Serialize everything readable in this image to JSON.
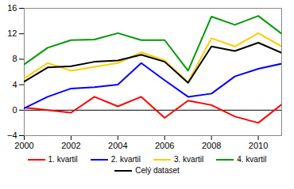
{
  "chart_data": {
    "type": "line",
    "x": [
      2000,
      2001,
      2002,
      2003,
      2004,
      2005,
      2006,
      2007,
      2008,
      2009,
      2010,
      2011
    ],
    "series": [
      {
        "name": "1. kvartil",
        "color": "#ff0000",
        "values": [
          0.4,
          0,
          -0.4,
          2.1,
          0.6,
          2.1,
          -1.2,
          1.5,
          0.8,
          -1,
          -2,
          0.9
        ]
      },
      {
        "name": "2. kvartil",
        "color": "#0000ff",
        "values": [
          0.3,
          2.1,
          3.4,
          3.6,
          4.0,
          7.4,
          4.7,
          2.1,
          2.6,
          5.3,
          6.5,
          7.3
        ]
      },
      {
        "name": "3. kvartil",
        "color": "#ffcc00",
        "values": [
          5.0,
          7.4,
          6.2,
          6.8,
          7.4,
          9.1,
          7.8,
          4.4,
          11.3,
          10.0,
          12.1,
          10.0
        ]
      },
      {
        "name": "4. kvartil",
        "color": "#009900",
        "values": [
          7.2,
          9.8,
          11.0,
          11.1,
          12.1,
          11.0,
          11.0,
          6.2,
          14.7,
          13.4,
          14.8,
          12.0
        ]
      },
      {
        "name": "Celý dataset",
        "color": "#000000",
        "values": [
          4.5,
          6.7,
          6.9,
          7.6,
          7.8,
          8.7,
          7.6,
          4.3,
          10.0,
          9.3,
          10.6,
          9.0
        ]
      }
    ],
    "xlim": [
      2000,
      2011
    ],
    "xticks": [
      2000,
      2002,
      2004,
      2006,
      2008,
      2010
    ],
    "ylim": [
      -4,
      16
    ],
    "yticks": [
      -4,
      0,
      4,
      8,
      12,
      16
    ],
    "grid": false,
    "legend": "bottom"
  }
}
